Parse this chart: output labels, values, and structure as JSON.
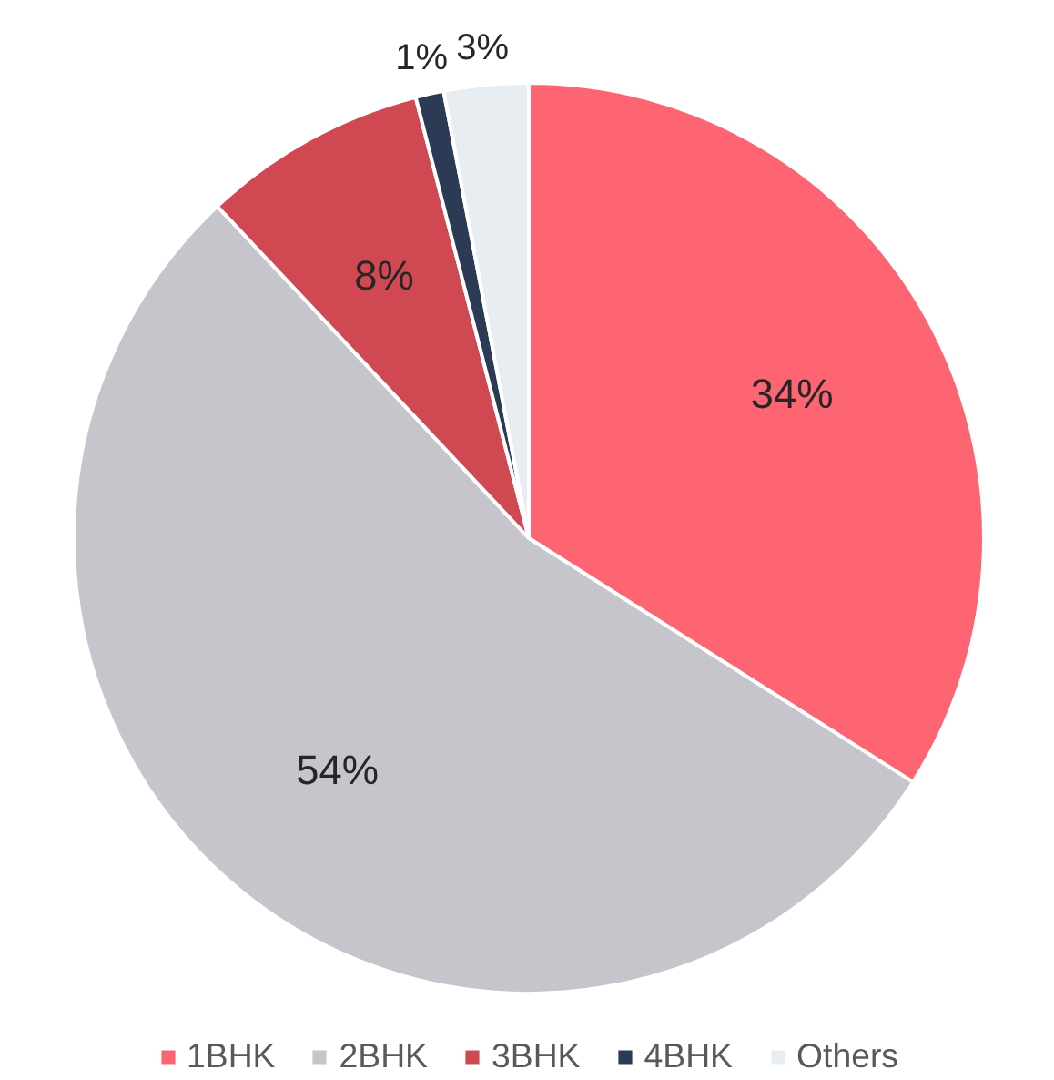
{
  "chart_data": {
    "type": "pie",
    "categories": [
      "1BHK",
      "2BHK",
      "3BHK",
      "4BHK",
      "Others"
    ],
    "values": [
      34,
      54,
      8,
      1,
      3
    ],
    "colors": [
      "#fe6572",
      "#c5c5cb",
      "#d04952",
      "#2c3b55",
      "#e8edf2"
    ],
    "value_labels": [
      "34%",
      "54%",
      "8%",
      "1%",
      "3%"
    ],
    "legend": "bottom"
  }
}
